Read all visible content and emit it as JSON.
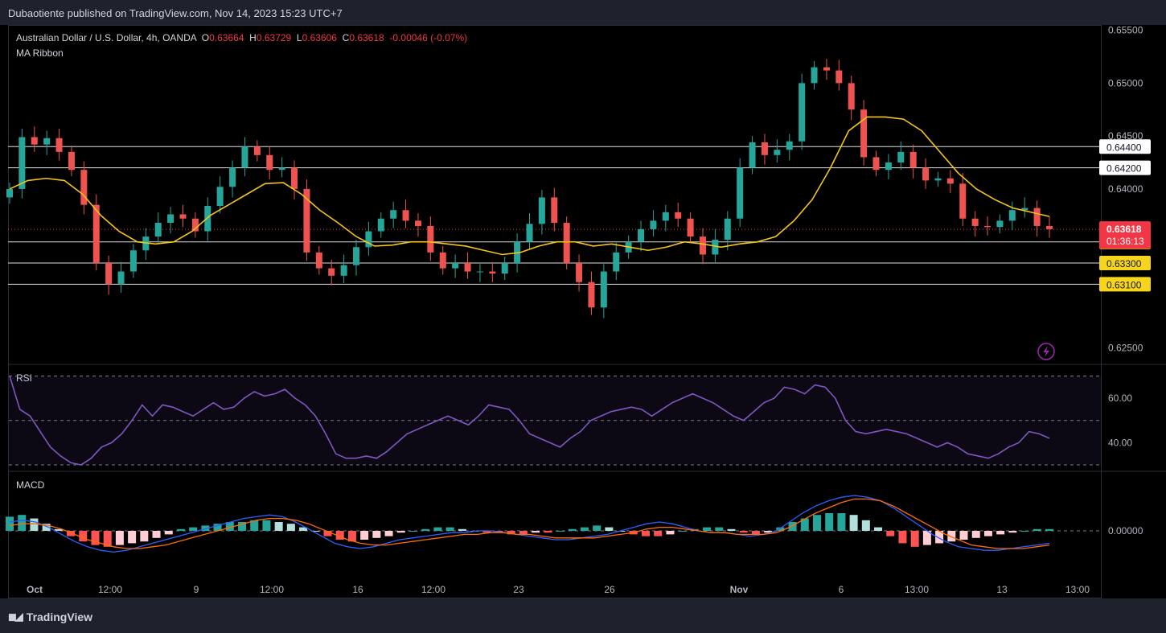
{
  "header": {
    "publisher_line": "Dubaotiente published on TradingView.com, Nov 14, 2023 15:23 UTC+7"
  },
  "legend": {
    "symbol": "Australian Dollar / U.S. Dollar, 4h, OANDA",
    "o_label": "O",
    "o_value": "0.63664",
    "h_label": "H",
    "h_value": "0.63729",
    "l_label": "L",
    "l_value": "0.63606",
    "c_label": "C",
    "c_value": "0.63618",
    "change": "-0.00046 (-0.07%)",
    "indicator": "MA Ribbon"
  },
  "colors": {
    "up": "#26a69a",
    "down": "#ef5350",
    "ma": "#f5c518",
    "rsi": "#7e57c2",
    "macd": "#2962ff",
    "signal": "#ff6d00",
    "level_tag": "#f7d51d",
    "price_tag": "#f23645"
  },
  "chart_data": [
    {
      "type": "candlestick",
      "pane": "price",
      "symbol": "AUDUSD",
      "timeframe": "4h",
      "ylim": [
        0.6235,
        0.6555
      ],
      "y_ticks": [
        "0.65500",
        "0.65000",
        "0.64500",
        "0.64000",
        "0.62500"
      ],
      "x_ticks": [
        "Oct",
        "12:00",
        "9",
        "12:00",
        "16",
        "12:00",
        "23",
        "26",
        "Nov",
        "6",
        "13:00",
        "13",
        "13:00"
      ],
      "current_price": "0.63618",
      "countdown": "01:36:13",
      "horizontal_levels": [
        "0.64400",
        "0.64200",
        "0.63500",
        "0.63300",
        "0.63100"
      ],
      "level_values": [
        0.644,
        0.642,
        0.635,
        0.633,
        0.631
      ],
      "close_path": [
        0.64,
        0.6449,
        0.6442,
        0.6448,
        0.6435,
        0.6418,
        0.6385,
        0.633,
        0.631,
        0.6322,
        0.6342,
        0.6355,
        0.6368,
        0.6376,
        0.6372,
        0.636,
        0.6384,
        0.6402,
        0.642,
        0.644,
        0.6432,
        0.6418,
        0.642,
        0.64,
        0.634,
        0.6325,
        0.6318,
        0.6328,
        0.6345,
        0.636,
        0.6372,
        0.638,
        0.637,
        0.6365,
        0.634,
        0.6325,
        0.633,
        0.6322,
        0.6322,
        0.632,
        0.633,
        0.635,
        0.6367,
        0.6392,
        0.6368,
        0.633,
        0.6312,
        0.6288,
        0.6322,
        0.634,
        0.635,
        0.6362,
        0.637,
        0.6378,
        0.6372,
        0.6355,
        0.6338,
        0.6352,
        0.6372,
        0.642,
        0.6444,
        0.6432,
        0.6437,
        0.6445,
        0.65,
        0.6515,
        0.6512,
        0.65,
        0.6475,
        0.643,
        0.6418,
        0.6425,
        0.6435,
        0.642,
        0.6408,
        0.641,
        0.6405,
        0.6372,
        0.6365,
        0.6364,
        0.637,
        0.638,
        0.6382,
        0.6365,
        0.6362
      ],
      "ma_path": [
        0.64,
        0.6408,
        0.641,
        0.6408,
        0.6395,
        0.6375,
        0.636,
        0.635,
        0.6348,
        0.635,
        0.636,
        0.6375,
        0.6385,
        0.6395,
        0.6405,
        0.6406,
        0.6395,
        0.638,
        0.6368,
        0.6355,
        0.6346,
        0.6347,
        0.635,
        0.635,
        0.6348,
        0.6346,
        0.6342,
        0.6338,
        0.634,
        0.6346,
        0.635,
        0.635,
        0.6346,
        0.6348,
        0.6345,
        0.6342,
        0.6345,
        0.635,
        0.6348,
        0.6345,
        0.6348,
        0.635,
        0.6355,
        0.637,
        0.639,
        0.642,
        0.6455,
        0.6468,
        0.6468,
        0.6466,
        0.6455,
        0.6435,
        0.6415,
        0.64,
        0.639,
        0.6382,
        0.6378,
        0.6374
      ]
    },
    {
      "type": "line",
      "pane": "rsi",
      "name": "RSI",
      "ylim": [
        30,
        72
      ],
      "y_ticks": [
        "60.00",
        "40.00"
      ],
      "bands": [
        70,
        50,
        30
      ],
      "values": [
        70,
        55,
        52,
        45,
        38,
        34,
        31,
        30,
        33,
        38,
        40,
        44,
        50,
        57,
        52,
        57,
        56,
        54,
        52,
        55,
        58,
        55,
        56,
        60,
        63,
        61,
        62,
        64,
        60,
        57,
        52,
        44,
        35,
        33,
        33,
        34,
        33,
        36,
        40,
        44,
        46,
        48,
        50,
        52,
        50,
        48,
        52,
        57,
        56,
        55,
        50,
        44,
        42,
        40,
        38,
        42,
        45,
        50,
        52,
        54,
        55,
        56,
        55,
        52,
        55,
        58,
        60,
        62,
        60,
        58,
        55,
        52,
        50,
        54,
        58,
        60,
        65,
        64,
        62,
        66,
        65,
        60,
        50,
        45,
        44,
        45,
        46,
        45,
        44,
        42,
        40,
        38,
        40,
        38,
        35,
        34,
        33,
        35,
        38,
        40,
        45,
        44,
        42
      ]
    },
    {
      "type": "bar",
      "pane": "macd",
      "name": "MACD",
      "y_ticks": [
        "0.00000"
      ],
      "histogram": [
        0.8,
        0.9,
        0.7,
        0.4,
        0.1,
        -0.3,
        -0.6,
        -0.8,
        -0.9,
        -0.8,
        -0.7,
        -0.6,
        -0.4,
        -0.2,
        0.1,
        0.2,
        0.3,
        0.4,
        0.5,
        0.5,
        0.6,
        0.6,
        0.5,
        0.4,
        0.2,
        0.0,
        -0.3,
        -0.5,
        -0.6,
        -0.5,
        -0.4,
        -0.3,
        -0.1,
        0.0,
        0.1,
        0.2,
        0.2,
        0.1,
        0.0,
        -0.1,
        -0.1,
        -0.2,
        -0.2,
        -0.1,
        -0.1,
        0.0,
        0.1,
        0.2,
        0.3,
        0.2,
        0.0,
        -0.2,
        -0.3,
        -0.3,
        -0.2,
        0.0,
        0.1,
        0.2,
        0.2,
        0.1,
        -0.1,
        -0.2,
        -0.1,
        0.2,
        0.5,
        0.7,
        0.9,
        1.0,
        1.0,
        0.9,
        0.6,
        0.2,
        -0.3,
        -0.7,
        -0.9,
        -0.8,
        -0.7,
        -0.6,
        -0.5,
        -0.4,
        -0.3,
        -0.2,
        -0.1,
        0.0,
        0.1,
        0.1
      ],
      "macd_line": [
        0.5,
        0.6,
        0.5,
        0.2,
        -0.2,
        -0.6,
        -0.9,
        -1.1,
        -1.2,
        -1.1,
        -0.9,
        -0.7,
        -0.5,
        -0.3,
        -0.1,
        0.1,
        0.3,
        0.5,
        0.7,
        0.8,
        0.9,
        0.8,
        0.5,
        0.1,
        -0.3,
        -0.7,
        -0.9,
        -1.0,
        -0.9,
        -0.7,
        -0.5,
        -0.4,
        -0.3,
        -0.2,
        -0.1,
        -0.1,
        0.0,
        0.0,
        -0.1,
        -0.2,
        -0.3,
        -0.4,
        -0.5,
        -0.5,
        -0.4,
        -0.3,
        -0.2,
        0.0,
        0.2,
        0.4,
        0.5,
        0.4,
        0.2,
        0.0,
        -0.1,
        -0.1,
        -0.2,
        -0.3,
        -0.2,
        0.0,
        0.5,
        1.0,
        1.4,
        1.7,
        1.9,
        2.0,
        1.9,
        1.7,
        1.3,
        0.8,
        0.3,
        -0.2,
        -0.6,
        -0.9,
        -1.0,
        -1.1,
        -1.1,
        -1.0,
        -0.9,
        -0.8,
        -0.7
      ],
      "signal_line": [
        0.3,
        0.4,
        0.4,
        0.3,
        0.1,
        -0.2,
        -0.5,
        -0.7,
        -0.9,
        -1.0,
        -1.0,
        -0.9,
        -0.8,
        -0.6,
        -0.4,
        -0.2,
        0.0,
        0.2,
        0.4,
        0.6,
        0.7,
        0.7,
        0.6,
        0.4,
        0.1,
        -0.2,
        -0.5,
        -0.7,
        -0.8,
        -0.8,
        -0.7,
        -0.6,
        -0.5,
        -0.4,
        -0.3,
        -0.2,
        -0.2,
        -0.1,
        -0.1,
        -0.2,
        -0.2,
        -0.3,
        -0.4,
        -0.4,
        -0.4,
        -0.4,
        -0.3,
        -0.2,
        -0.1,
        0.1,
        0.2,
        0.2,
        0.1,
        0.0,
        -0.1,
        -0.1,
        -0.2,
        -0.2,
        -0.2,
        -0.1,
        0.2,
        0.6,
        1.0,
        1.3,
        1.6,
        1.8,
        1.8,
        1.7,
        1.4,
        1.0,
        0.6,
        0.2,
        -0.2,
        -0.5,
        -0.8,
        -0.9,
        -1.0,
        -1.0,
        -1.0,
        -0.9,
        -0.8
      ]
    }
  ],
  "footer": {
    "brand": "TradingView"
  }
}
